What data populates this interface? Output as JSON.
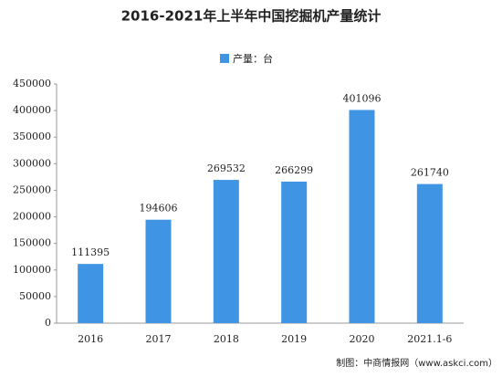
{
  "chart_data": {
    "type": "bar",
    "title": "2016-2021年上半年中国挖掘机产量统计",
    "legend": "产量：台",
    "categories": [
      "2016",
      "2017",
      "2018",
      "2019",
      "2020",
      "2021.1-6"
    ],
    "values": [
      111395,
      194606,
      269532,
      266299,
      401096,
      261740
    ],
    "color": "#3f94e4",
    "ylim": [
      0,
      450000
    ],
    "yticks": [
      0,
      50000,
      100000,
      150000,
      200000,
      250000,
      300000,
      350000,
      400000,
      450000
    ],
    "grid": false,
    "source": "制图：中商情报网（www.askci.com）"
  }
}
